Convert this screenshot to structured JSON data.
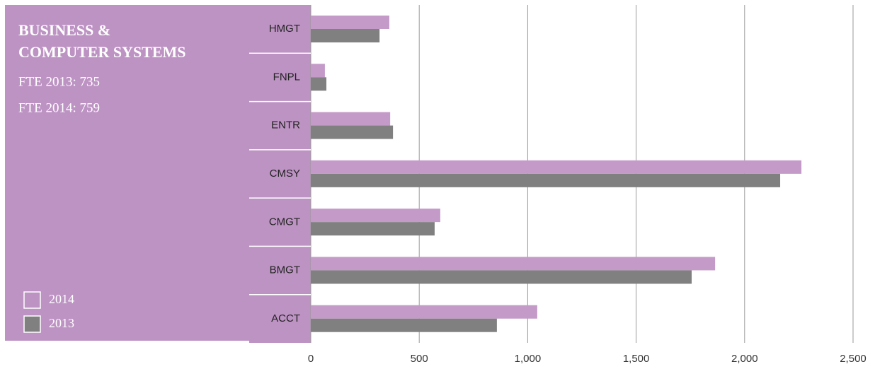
{
  "chart_data": {
    "type": "hbar",
    "title_lines": [
      "BUSINESS &",
      "COMPUTER SYSTEMS"
    ],
    "annotations": [
      "FTE 2013: 735",
      "FTE 2014: 759"
    ],
    "categories": [
      "HMGT",
      "FNPL",
      "ENTR",
      "CMSY",
      "CMGT",
      "BMGT",
      "ACCT"
    ],
    "series": [
      {
        "name": "2014",
        "color": "#c49ac8",
        "values": [
          362,
          65,
          366,
          2262,
          597,
          1864,
          1044
        ]
      },
      {
        "name": "2013",
        "color": "#808080",
        "values": [
          317,
          72,
          379,
          2164,
          571,
          1756,
          858
        ]
      }
    ],
    "xlim": [
      0,
      2500
    ],
    "xticks": [
      0,
      500,
      {
        "value": 1000,
        "label": "1,000"
      },
      {
        "value": 1500,
        "label": "1,500"
      },
      {
        "value": 2000,
        "label": "2,000"
      },
      {
        "value": 2500,
        "label": "2,500"
      }
    ],
    "grid": true,
    "panel_color": "#bd93c3"
  }
}
